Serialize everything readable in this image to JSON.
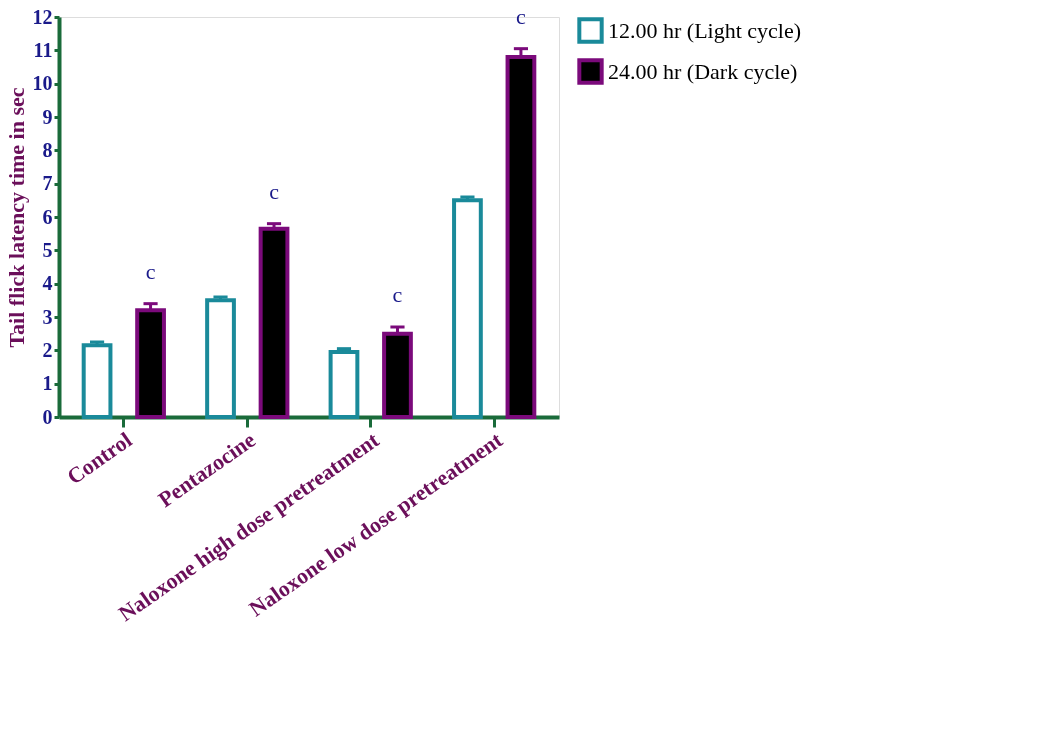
{
  "chart_data": {
    "type": "bar",
    "ylabel": "Tail flick latency time in sec",
    "categories": [
      "Control",
      "Pentazocine",
      "Naloxone high dose pretreatment",
      "Naloxone low dose pretreatment"
    ],
    "series": [
      {
        "name": "12.00 hr (Light cycle)",
        "color": "#1a8a9a",
        "values": [
          2.15,
          3.5,
          1.95,
          6.5
        ],
        "errors": [
          [
            2.15,
            2.25
          ],
          [
            3.5,
            3.6
          ],
          [
            1.95,
            2.05
          ],
          [
            6.5,
            6.6
          ]
        ]
      },
      {
        "name": "24.00 hr (Dark cycle)",
        "color": "#000000",
        "values": [
          3.2,
          5.65,
          2.5,
          10.8
        ],
        "errors": [
          [
            3.2,
            3.4
          ],
          [
            5.65,
            5.8
          ],
          [
            2.5,
            2.7
          ],
          [
            10.8,
            11.05
          ]
        ]
      }
    ],
    "ylim": [
      0,
      12
    ],
    "yticks": [
      0,
      1,
      2,
      3,
      4,
      5,
      6,
      7,
      8,
      9,
      10,
      11,
      12
    ],
    "grid": false,
    "legend": "top right",
    "annotations": [
      "c",
      "c",
      "c",
      "c"
    ]
  }
}
